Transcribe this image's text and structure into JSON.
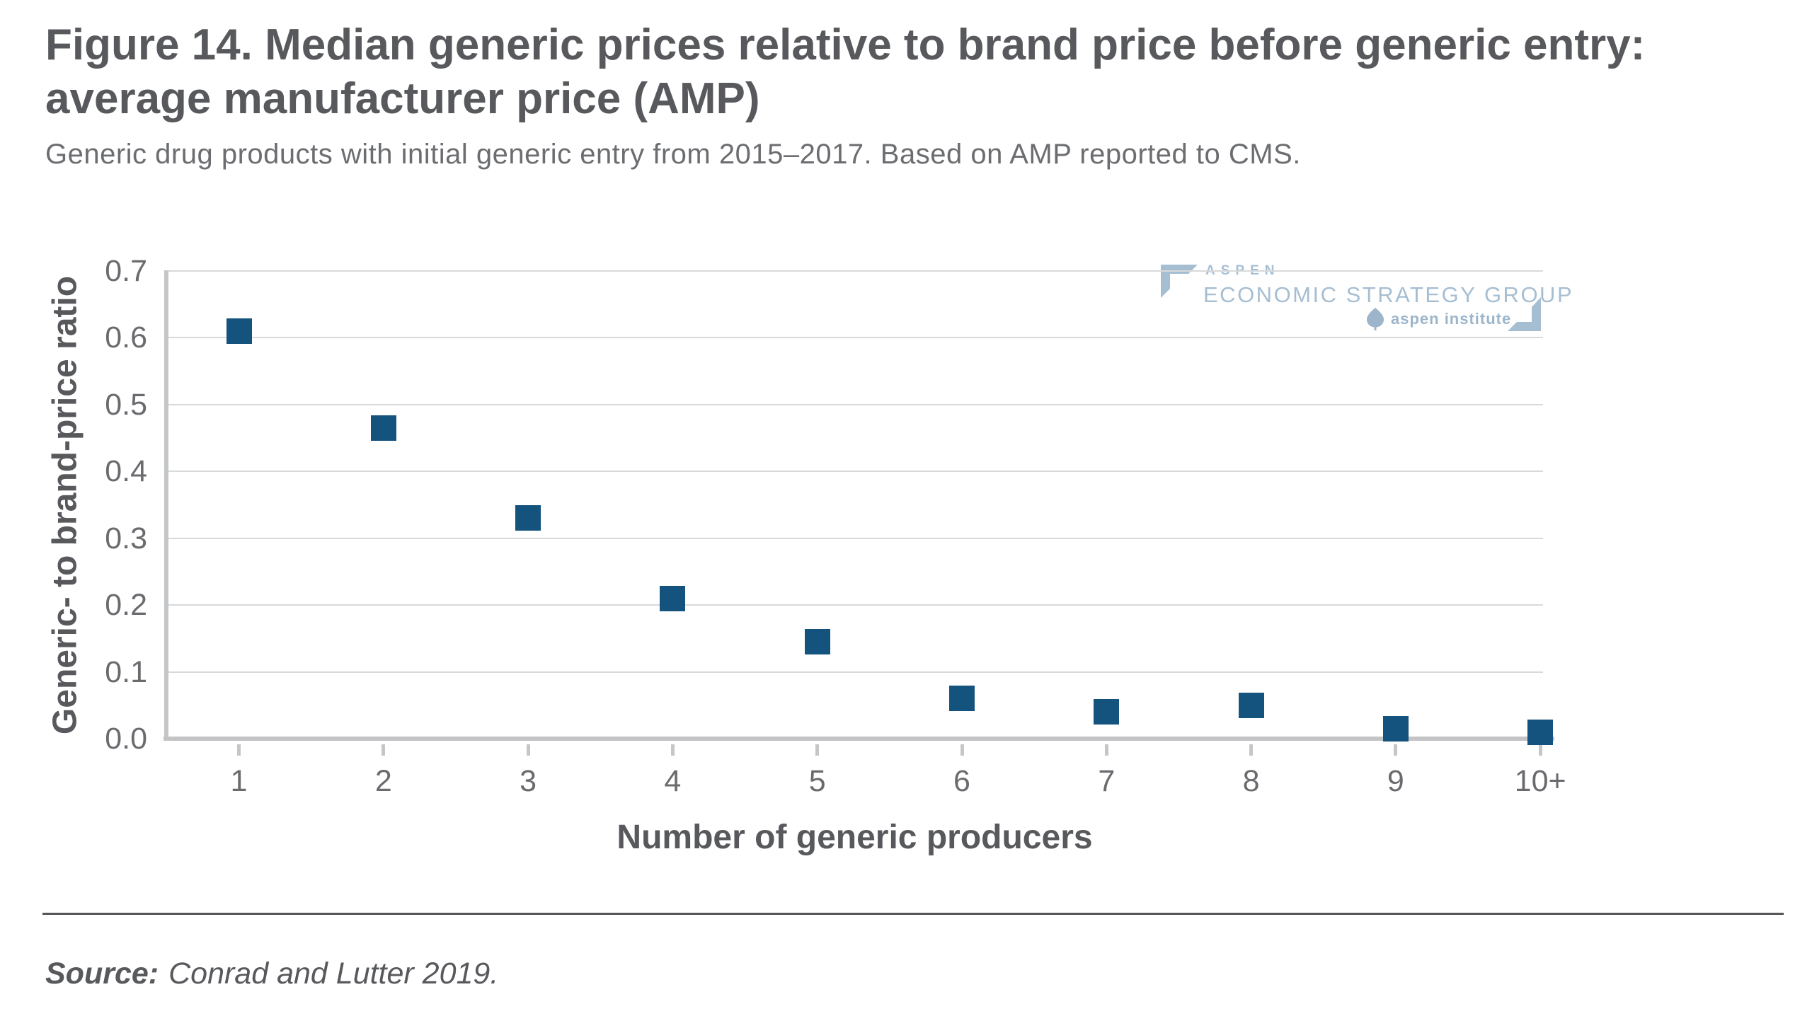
{
  "title": {
    "line1": "Figure 14. Median generic prices relative to brand price before generic entry:",
    "line2": "average manufacturer price (AMP)"
  },
  "subtitle": "Generic drug products with initial generic entry from 2015–2017. Based on AMP reported to CMS.",
  "source": {
    "label": "Source:",
    "text": "Conrad and Lutter 2019."
  },
  "logo": {
    "aspen": "ASPEN",
    "esg": "ECONOMIC STRATEGY GROUP",
    "institute": "aspen institute",
    "leaf_icon": "aspen-leaf-icon",
    "color": "#a6bed2"
  },
  "chart_data": {
    "type": "scatter",
    "marker": "square",
    "marker_color": "#15537f",
    "categories": [
      "1",
      "2",
      "3",
      "4",
      "5",
      "6",
      "7",
      "8",
      "9",
      "10+"
    ],
    "values": [
      0.61,
      0.465,
      0.33,
      0.21,
      0.145,
      0.06,
      0.04,
      0.05,
      0.015,
      0.01
    ],
    "title": "Figure 14. Median generic prices relative to brand price before generic entry: average manufacturer price (AMP)",
    "xlabel": "Number of generic producers",
    "ylabel": "Generic- to brand-price ratio",
    "ylim": [
      0,
      0.7
    ],
    "yticks": [
      "0.7",
      "0.6",
      "0.5",
      "0.4",
      "0.3",
      "0.2",
      "0.1",
      "0.0"
    ],
    "grid": "horizontal",
    "legend": "none",
    "gridline_color": "#d8d9da",
    "axis_color": "#c5c6c8",
    "tick_label_color": "#696b6e"
  }
}
